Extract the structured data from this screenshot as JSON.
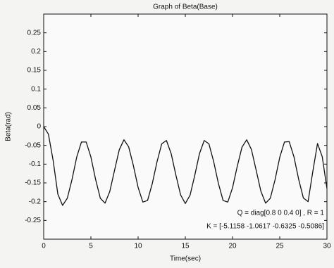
{
  "chart_data": {
    "type": "line",
    "title": "Graph of Beta(Base)",
    "x_label": "Time(sec)",
    "y_label": "Beta(rad)",
    "x": [
      0,
      0.5,
      1,
      1.5,
      2,
      2.5,
      3,
      3.5,
      4,
      4.5,
      5,
      5.5,
      6,
      6.5,
      7,
      7.5,
      8,
      8.5,
      9,
      9.5,
      10,
      10.5,
      11,
      11.5,
      12,
      12.5,
      13,
      13.5,
      14,
      14.5,
      15,
      15.5,
      16,
      16.5,
      17,
      17.5,
      18,
      18.5,
      19,
      19.5,
      20,
      20.5,
      21,
      21.5,
      22,
      22.5,
      23,
      23.5,
      24,
      24.5,
      25,
      25.5,
      26,
      26.5,
      27,
      27.5,
      28,
      28.5,
      29,
      29.5,
      30
    ],
    "series": [
      {
        "name": "Beta",
        "color": "#111111",
        "values": [
          0,
          -0.02,
          -0.09,
          -0.18,
          -0.21,
          -0.191,
          -0.141,
          -0.081,
          -0.041,
          -0.041,
          -0.081,
          -0.141,
          -0.191,
          -0.204,
          -0.173,
          -0.117,
          -0.062,
          -0.035,
          -0.054,
          -0.104,
          -0.162,
          -0.201,
          -0.197,
          -0.152,
          -0.094,
          -0.046,
          -0.037,
          -0.072,
          -0.129,
          -0.182,
          -0.205,
          -0.183,
          -0.13,
          -0.072,
          -0.037,
          -0.046,
          -0.093,
          -0.151,
          -0.197,
          -0.201,
          -0.163,
          -0.106,
          -0.055,
          -0.035,
          -0.061,
          -0.116,
          -0.172,
          -0.204,
          -0.191,
          -0.142,
          -0.082,
          -0.041,
          -0.04,
          -0.08,
          -0.14,
          -0.19,
          -0.2,
          -0.12,
          -0.045,
          -0.08,
          -0.165
        ]
      }
    ],
    "xlim": [
      0,
      30
    ],
    "xticks": [
      0,
      5,
      10,
      15,
      20,
      25,
      30
    ],
    "ylim": [
      -0.3,
      0.3
    ],
    "yticks": [
      -0.25,
      -0.2,
      -0.15,
      -0.1,
      -0.05,
      0,
      0.05,
      0.1,
      0.15,
      0.2,
      0.25
    ],
    "annotations": [
      "Q = diag[0.8 0 0.4 0] , R = 1",
      "K = [-5.1158 -1.0617 -0.6325 -0.5086]"
    ]
  }
}
